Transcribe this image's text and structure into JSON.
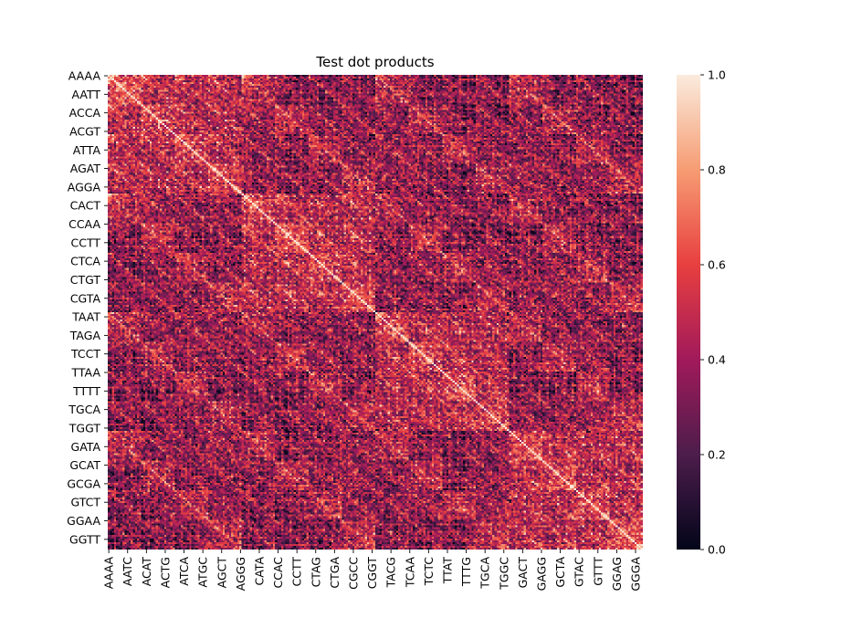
{
  "chart_data": {
    "type": "heatmap",
    "title": "Test dot products",
    "xlabel": "",
    "ylabel": "",
    "n_rows": 256,
    "n_cols": 256,
    "row_tick_labels": [
      "AAAA",
      "AATT",
      "ACCA",
      "ACGT",
      "ATTA",
      "AGAT",
      "AGGA",
      "CACT",
      "CCAA",
      "CCTT",
      "CTCA",
      "CTGT",
      "CGTA",
      "TAAT",
      "TAGA",
      "TCCT",
      "TTAA",
      "TTTT",
      "TGCA",
      "TGGT",
      "GATA",
      "GCAT",
      "GCGA",
      "GTCT",
      "GGAA",
      "GGTT"
    ],
    "col_tick_labels": [
      "AAAA",
      "AATC",
      "ACAT",
      "ACTG",
      "ATCA",
      "ATGC",
      "AGCT",
      "AGGG",
      "CATA",
      "CCAC",
      "CCTT",
      "CTAG",
      "CTGA",
      "CGCC",
      "CGGT",
      "TACG",
      "TCAA",
      "TCTC",
      "TTAT",
      "TTTG",
      "TGCA",
      "TGGC",
      "GACT",
      "GAGG",
      "GCTA",
      "GTAC",
      "GTTT",
      "GGAG",
      "GGGA"
    ],
    "row_tick_positions": [
      0,
      10,
      20,
      30,
      40,
      50,
      60,
      70,
      80,
      90,
      100,
      110,
      120,
      130,
      140,
      150,
      160,
      170,
      180,
      190,
      200,
      210,
      220,
      230,
      240,
      250
    ],
    "col_tick_positions": [
      0,
      9,
      18,
      27,
      36,
      45,
      54,
      63,
      72,
      81,
      90,
      99,
      108,
      117,
      126,
      135,
      144,
      153,
      162,
      171,
      180,
      189,
      198,
      207,
      216,
      225,
      234,
      243,
      252
    ],
    "value_description": "symmetric matrix of dot products between 256 DNA 4-mers; diagonal = 1.0",
    "colorbar": {
      "min": 0.0,
      "max": 1.0,
      "ticks": [
        "0.0",
        "0.2",
        "0.4",
        "0.6",
        "0.8",
        "1.0"
      ],
      "colormap": "rocket",
      "colors": [
        "#03051a",
        "#4c1d4b",
        "#a11a5b",
        "#e83f3f",
        "#f69c73",
        "#faebdd"
      ]
    }
  }
}
